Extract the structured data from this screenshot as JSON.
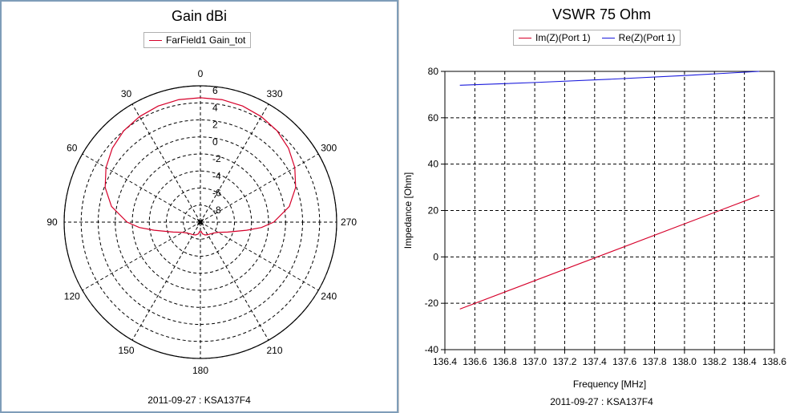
{
  "charts": {
    "polar": {
      "title": "Gain dBi",
      "footer": "2011-09-27 : KSA137F4",
      "legend": [
        {
          "label": "FarField1 Gain_tot",
          "color": "#d6002a"
        }
      ]
    },
    "rect": {
      "title": "VSWR 75 Ohm",
      "footer": "2011-09-27 : KSA137F4",
      "legend": [
        {
          "label": "Im(Z)(Port 1)",
          "color": "#d6002a"
        },
        {
          "label": "Re(Z)(Port 1)",
          "color": "#1a1adc"
        }
      ]
    }
  },
  "chart_data": [
    {
      "type": "line",
      "subtype": "polar",
      "title": "Gain dBi",
      "r_ticks": [
        6,
        4,
        2,
        0,
        -2,
        -4,
        -6,
        -8
      ],
      "r_range": [
        -10,
        6
      ],
      "angle_ticks": [
        0,
        30,
        60,
        90,
        120,
        150,
        180,
        210,
        240,
        270,
        300,
        330
      ],
      "angle_direction": "counterclockwise",
      "zero_angle": "top",
      "grid": true,
      "series": [
        {
          "name": "FarField1 Gain_tot",
          "color": "#d6002a",
          "theta": [
            0,
            10,
            20,
            30,
            40,
            50,
            60,
            70,
            80,
            90,
            95,
            100,
            110,
            120,
            130,
            140,
            150,
            160,
            170,
            175,
            180,
            185,
            190,
            200,
            210,
            220,
            230,
            240,
            250,
            260,
            265,
            270,
            280,
            290,
            300,
            310,
            320,
            330,
            340,
            350,
            360
          ],
          "gain": [
            4.6,
            4.6,
            4.5,
            4.3,
            4.0,
            3.5,
            2.8,
            1.9,
            0.6,
            -1.4,
            -2.8,
            -4.5,
            -6.6,
            -7.6,
            -8.0,
            -8.2,
            -8.3,
            -8.4,
            -8.6,
            -8.9,
            -8.8,
            -8.9,
            -8.6,
            -8.4,
            -8.3,
            -8.2,
            -8.0,
            -7.6,
            -6.6,
            -4.5,
            -2.8,
            -1.4,
            0.6,
            1.9,
            2.8,
            3.5,
            4.0,
            4.3,
            4.5,
            4.6,
            4.6
          ]
        }
      ]
    },
    {
      "type": "line",
      "title": "VSWR 75 Ohm",
      "xlabel": "Frequency [MHz]",
      "ylabel": "Impedance [Ohm]",
      "xlim": [
        136.4,
        138.6
      ],
      "ylim": [
        -40,
        80
      ],
      "xticks": [
        136.4,
        136.6,
        136.8,
        137.0,
        137.2,
        137.4,
        137.6,
        137.8,
        138.0,
        138.2,
        138.4,
        138.6
      ],
      "xtick_labels": [
        "136.4",
        "136.6",
        "136.8",
        "137.0",
        "137.2",
        "137.4",
        "137.6",
        "137.8",
        "138.0",
        "138.2",
        "138.4",
        "138.6"
      ],
      "yticks": [
        -40,
        -20,
        0,
        20,
        40,
        60,
        80
      ],
      "grid": true,
      "legend_position": "top",
      "series": [
        {
          "name": "Im(Z)(Port 1)",
          "color": "#d6002a",
          "x": [
            136.5,
            138.5
          ],
          "y": [
            -22.5,
            26.5
          ]
        },
        {
          "name": "Re(Z)(Port 1)",
          "color": "#1a1adc",
          "x": [
            136.5,
            137.0,
            137.5,
            138.0,
            138.5
          ],
          "y": [
            74.0,
            75.2,
            76.6,
            78.2,
            80.0
          ]
        }
      ]
    }
  ]
}
